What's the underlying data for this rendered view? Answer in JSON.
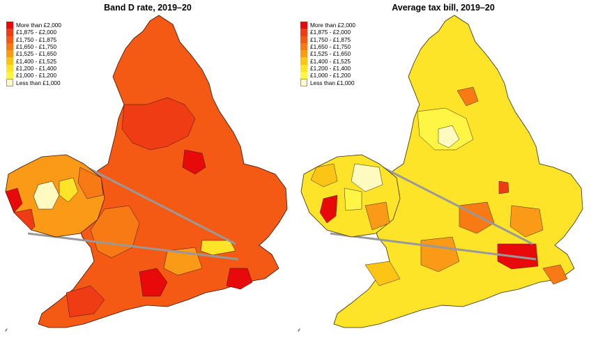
{
  "maps": [
    {
      "id": "band-d",
      "title": "Band D rate, 2019–20",
      "legend": [
        {
          "label": "More than £2,000",
          "color": "#e80a0a"
        },
        {
          "label": "£1,875 - £2,000",
          "color": "#f03c14"
        },
        {
          "label": "£1,750 - £1,875",
          "color": "#f55a14"
        },
        {
          "label": "£1,650 - £1,750",
          "color": "#f87a14"
        },
        {
          "label": "£1,525 - £1,650",
          "color": "#fa9a16"
        },
        {
          "label": "£1,400 - £1,525",
          "color": "#fcc414"
        },
        {
          "label": "£1,200 - £1,400",
          "color": "#fde428"
        },
        {
          "label": "£1,000 - £1,200",
          "color": "#fff544"
        },
        {
          "label": "Less than £1,000",
          "color": "#fffbc0"
        }
      ]
    },
    {
      "id": "average-bill",
      "title": "Average tax bill, 2019–20",
      "legend": [
        {
          "label": "More than £2,000",
          "color": "#e80a0a"
        },
        {
          "label": "£1,875 - £2,000",
          "color": "#f03c14"
        },
        {
          "label": "£1,750 - £1,875",
          "color": "#f55a14"
        },
        {
          "label": "£1,650 - £1,750",
          "color": "#f87a14"
        },
        {
          "label": "£1,525 - £1,650",
          "color": "#fa9a16"
        },
        {
          "label": "£1,400 - £1,525",
          "color": "#fcc414"
        },
        {
          "label": "£1,200 - £1,400",
          "color": "#fde428"
        },
        {
          "label": "£1,000 - £1,200",
          "color": "#fff544"
        },
        {
          "label": "Less than £1,000",
          "color": "#fffbc0"
        }
      ]
    }
  ]
}
